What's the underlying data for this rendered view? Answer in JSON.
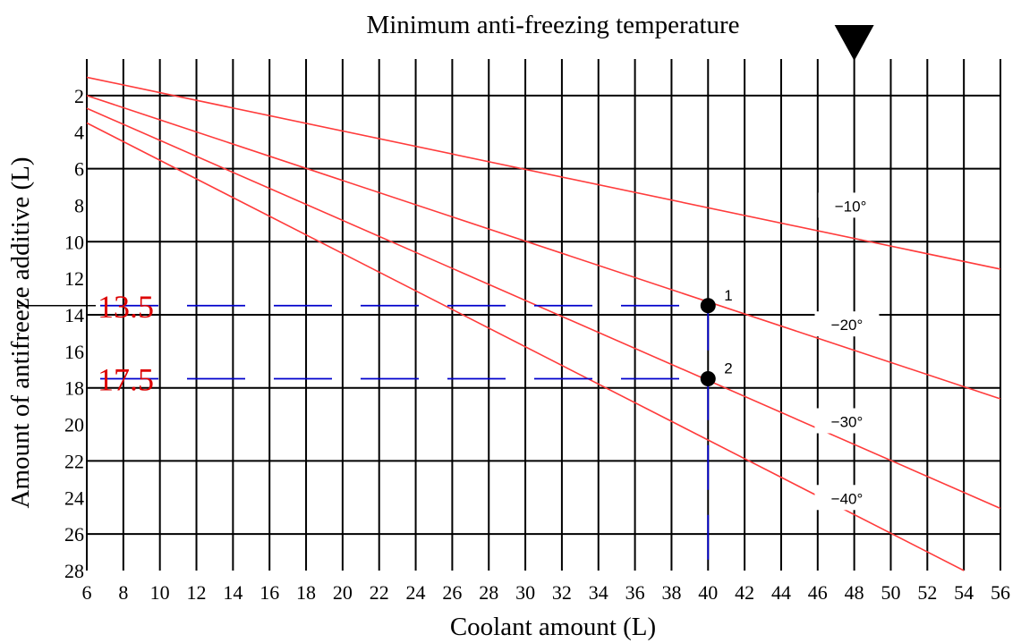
{
  "chart_data": {
    "type": "line",
    "title": "Minimum anti-freezing temperature",
    "xlabel": "Coolant amount (L)",
    "ylabel": "Amount of antifreeze additive (L)",
    "xlim": [
      6,
      56
    ],
    "ylim": [
      0,
      28
    ],
    "y_inverted": true,
    "grid": true,
    "x_ticks": [
      6,
      8,
      10,
      12,
      14,
      16,
      18,
      20,
      22,
      24,
      26,
      28,
      30,
      32,
      34,
      36,
      38,
      40,
      42,
      44,
      46,
      48,
      50,
      52,
      54,
      56
    ],
    "y_ticks": [
      2,
      4,
      6,
      8,
      10,
      12,
      14,
      16,
      18,
      20,
      22,
      24,
      26,
      28
    ],
    "series": [
      {
        "name": "−10°",
        "x": [
          6,
          56
        ],
        "y": [
          1.0,
          11.5
        ]
      },
      {
        "name": "−20°",
        "x": [
          6,
          56
        ],
        "y": [
          2.0,
          18.6
        ]
      },
      {
        "name": "−30°",
        "x": [
          6,
          56
        ],
        "y": [
          2.7,
          24.6
        ]
      },
      {
        "name": "−40°",
        "x": [
          6,
          54
        ],
        "y": [
          3.5,
          28.0
        ]
      }
    ],
    "points": [
      {
        "label": "1",
        "x": 40,
        "y": 13.5
      },
      {
        "label": "2",
        "x": 40,
        "y": 17.5
      }
    ],
    "reference_lines": [
      {
        "orientation": "horizontal",
        "value": 13.5,
        "label": "13.5"
      },
      {
        "orientation": "horizontal",
        "value": 17.5,
        "label": "17.5"
      },
      {
        "orientation": "vertical",
        "value": 40
      }
    ],
    "marker": {
      "symbol": "down-triangle",
      "x": 48
    },
    "series_labels": [
      "−10°",
      "−20°",
      "−30°",
      "−40°"
    ],
    "colors": {
      "series": "#ff3b3b",
      "reference": "#0000cc",
      "highlight_text": "#dd0000",
      "grid": "#000000"
    }
  }
}
